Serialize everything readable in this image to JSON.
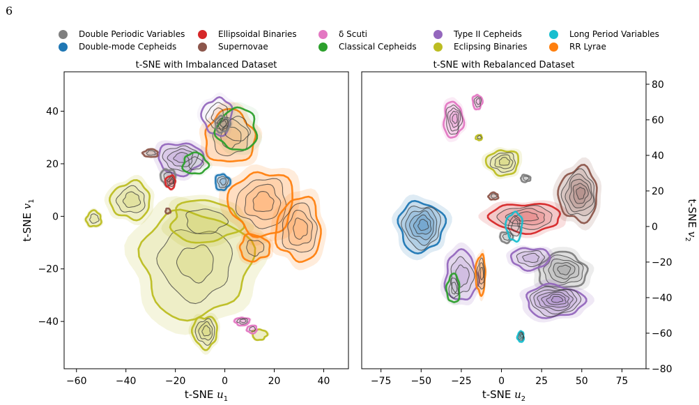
{
  "page": {
    "number": "6"
  },
  "legend": {
    "items": [
      {
        "label": "Double Periodic Variables",
        "color": "#7f7f7f"
      },
      {
        "label": "Double-mode Cepheids",
        "color": "#1f77b4"
      },
      {
        "label": "Ellipsoidal Binaries",
        "color": "#d62728"
      },
      {
        "label": "Supernovae",
        "color": "#8c564b"
      },
      {
        "label": "δ Scuti",
        "color": "#e377c2"
      },
      {
        "label": "Classical Cepheids",
        "color": "#2ca02c"
      },
      {
        "label": "Type II Cepheids",
        "color": "#9467bd"
      },
      {
        "label": "Eclipsing Binaries",
        "color": "#bcbd22"
      },
      {
        "label": "Long Period Variables",
        "color": "#17becf"
      },
      {
        "label": "RR Lyrae",
        "color": "#ff7f0e"
      }
    ]
  },
  "chart_data": [
    {
      "type": "contour",
      "title": "t-SNE with Imbalanced Dataset",
      "xlabel": "t-SNE u1",
      "ylabel": "t-SNE v1",
      "xlim": [
        -65,
        50
      ],
      "ylim": [
        -58,
        55
      ],
      "xticks": [
        -60,
        -40,
        -20,
        0,
        20,
        40
      ],
      "yticks": [
        -40,
        -20,
        0,
        20,
        40
      ],
      "grid": false,
      "series": [
        {
          "name": "Eclipsing Binaries",
          "color": "#bcbd22",
          "blobs": [
            [
              -12,
              -18,
              22,
              20,
              2.6,
              true
            ],
            [
              -8,
              -44,
              5,
              6,
              4,
              true
            ],
            [
              -38,
              6,
              8,
              7,
              3,
              true
            ],
            [
              -53,
              -1,
              3,
              3,
              2,
              true
            ],
            [
              -8,
              -2,
              14,
              8,
              2,
              true
            ],
            [
              14,
              -45,
              3,
              2,
              1,
              true
            ]
          ]
        },
        {
          "name": "RR Lyrae",
          "color": "#ff7f0e",
          "blobs": [
            [
              15,
              5,
              13,
              12,
              4,
              true
            ],
            [
              30,
              -5,
              9,
              12,
              4,
              true
            ],
            [
              2,
              30,
              10,
              10,
              3,
              true
            ],
            [
              12,
              -12,
              6,
              5,
              2,
              true
            ]
          ]
        },
        {
          "name": "Type II Cepheids",
          "color": "#9467bd",
          "blobs": [
            [
              -18,
              22,
              9,
              6,
              4,
              true
            ],
            [
              -3,
              38,
              6,
              7,
              3,
              false
            ]
          ]
        },
        {
          "name": "Classical Cepheids",
          "color": "#2ca02c",
          "blobs": [
            [
              5,
              33,
              8,
              8,
              2,
              false
            ],
            [
              -12,
              20,
              5,
              4,
              2,
              false
            ]
          ]
        },
        {
          "name": "Double Periodic Variables",
          "color": "#7f7f7f",
          "blobs": [
            [
              -1,
              35,
              3,
              3,
              3,
              true
            ],
            [
              -23,
              15,
              3,
              3,
              2,
              true
            ]
          ]
        },
        {
          "name": "Ellipsoidal Binaries",
          "color": "#d62728",
          "blobs": [
            [
              -22,
              13,
              2,
              2.5,
              3,
              true
            ]
          ]
        },
        {
          "name": "Supernovae",
          "color": "#8c564b",
          "blobs": [
            [
              -30,
              24,
              3,
              1.5,
              2,
              true
            ],
            [
              -23,
              2,
              1,
              1,
              1,
              true
            ]
          ]
        },
        {
          "name": "Double-mode Cepheids",
          "color": "#1f77b4",
          "blobs": [
            [
              -1,
              13,
              3,
              3,
              3,
              true
            ]
          ]
        },
        {
          "name": "δ Scuti",
          "color": "#e377c2",
          "blobs": [
            [
              7,
              -40,
              3,
              1.5,
              3,
              true
            ],
            [
              11,
              -43,
              2,
              1.5,
              2,
              true
            ]
          ]
        },
        {
          "name": "Long Period Variables",
          "color": "#17becf",
          "blobs": []
        }
      ]
    },
    {
      "type": "contour",
      "title": "t-SNE with Rebalanced Dataset",
      "xlabel": "t-SNE u2",
      "ylabel": "t-SNE v2",
      "xlim": [
        -87,
        90
      ],
      "ylim": [
        -80,
        87
      ],
      "xticks": [
        -75,
        -50,
        -25,
        0,
        25,
        50,
        75
      ],
      "yticks": [
        -80,
        -60,
        -40,
        -20,
        0,
        20,
        40,
        60,
        80
      ],
      "grid": false,
      "series": [
        {
          "name": "Double-mode Cepheids",
          "color": "#1f77b4",
          "blobs": [
            [
              -50,
              0,
              14,
              14,
              6,
              true
            ]
          ]
        },
        {
          "name": "Ellipsoidal Binaries",
          "color": "#d62728",
          "blobs": [
            [
              15,
              5,
              22,
              8,
              4,
              true
            ]
          ]
        },
        {
          "name": "Supernovae",
          "color": "#8c564b",
          "blobs": [
            [
              48,
              18,
              12,
              15,
              6,
              true
            ],
            [
              -5,
              17,
              3,
              2,
              2,
              true
            ]
          ]
        },
        {
          "name": "δ Scuti",
          "color": "#e377c2",
          "blobs": [
            [
              -30,
              60,
              6,
              10,
              5,
              true
            ],
            [
              -15,
              70,
              3,
              4,
              3,
              true
            ]
          ]
        },
        {
          "name": "Eclipsing Binaries",
          "color": "#bcbd22",
          "blobs": [
            [
              1,
              36,
              10,
              7,
              4,
              true
            ],
            [
              -14,
              50,
              2,
              1.5,
              2,
              true
            ]
          ]
        },
        {
          "name": "Double Periodic Variables",
          "color": "#7f7f7f",
          "blobs": [
            [
              38,
              -25,
              15,
              10,
              5,
              true
            ],
            [
              15,
              27,
              3,
              2,
              2,
              true
            ],
            [
              3,
              -6,
              4,
              3,
              2,
              true
            ]
          ]
        },
        {
          "name": "Long Period Variables",
          "color": "#17becf",
          "blobs": [
            [
              8,
              0,
              5,
              8,
              3,
              false
            ],
            [
              12,
              -62,
              2,
              3,
              4,
              true
            ]
          ]
        },
        {
          "name": "Type II Cepheids",
          "color": "#9467bd",
          "blobs": [
            [
              -25,
              -28,
              10,
              14,
              3,
              true
            ],
            [
              33,
              -42,
              18,
              9,
              7,
              true
            ],
            [
              18,
              -18,
              12,
              6,
              3,
              true
            ]
          ]
        },
        {
          "name": "RR Lyrae",
          "color": "#ff7f0e",
          "blobs": [
            [
              -13,
              -27,
              3,
              11,
              4,
              true
            ]
          ]
        },
        {
          "name": "Classical Cepheids",
          "color": "#2ca02c",
          "blobs": [
            [
              -30,
              -35,
              4,
              8,
              3,
              false
            ]
          ]
        }
      ]
    }
  ]
}
